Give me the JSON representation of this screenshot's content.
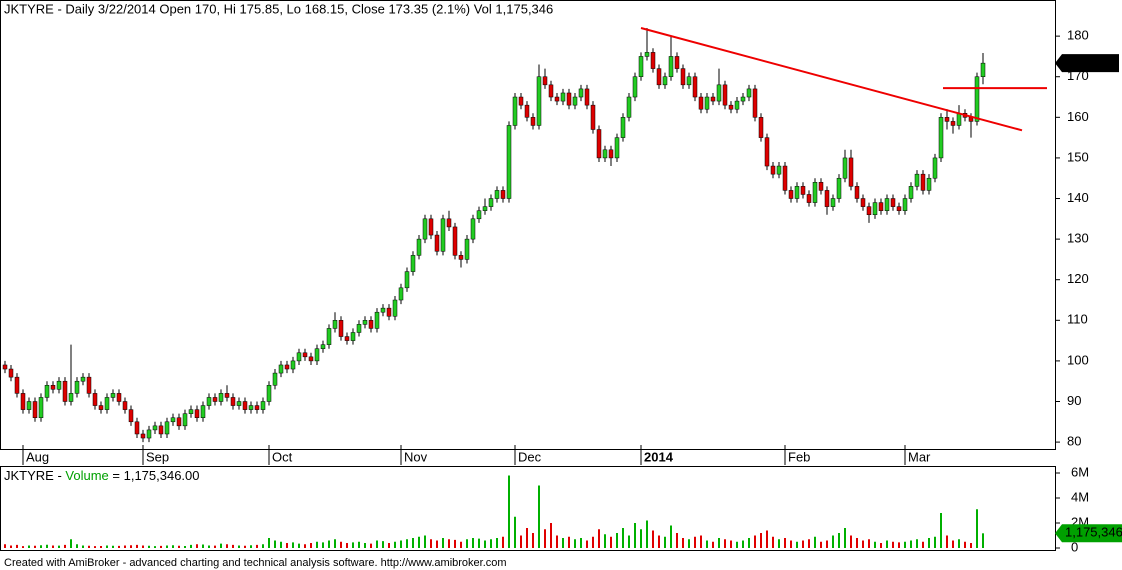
{
  "chart_data": {
    "type": "candlestick",
    "title": "JKTYRE - Daily 3/22/2014 Open 170, Hi 175.85, Lo 168.15, Close 173.35 (2.1%) Vol 1,175,346",
    "volume_title": {
      "symbol": "JKTYRE - ",
      "name": "Volume",
      "value": " = 1,175,346.00"
    },
    "footer": "Created with AmiBroker - advanced charting and technical analysis software. http://www.amibroker.com",
    "up_color": "#22cc22",
    "down_color": "#dd0000",
    "volume_up_color": "#00b000",
    "volume_down_color": "#e00000",
    "ylim": [
      78.3,
      188.9
    ],
    "yticks": [
      80,
      90,
      100,
      110,
      120,
      130,
      140,
      150,
      160,
      170,
      180
    ],
    "volume_ylim": [
      0,
      6480000
    ],
    "volume_ticks": [
      {
        "value": 0,
        "label": "0"
      },
      {
        "value": 2000000,
        "label": "2M"
      },
      {
        "value": 4000000,
        "label": "4M"
      },
      {
        "value": 6000000,
        "label": "6M"
      }
    ],
    "last_volume_label": "1,175,346",
    "trendlines": [
      {
        "color": "#ee0000",
        "start": 182,
        "end": 156.8
      },
      {
        "color": "#ee0000",
        "start": 167.2,
        "end": 167.2
      }
    ],
    "categories": [
      null,
      null,
      null,
      "Aug",
      null,
      null,
      null,
      null,
      null,
      null,
      null,
      null,
      null,
      null,
      null,
      null,
      null,
      null,
      null,
      null,
      null,
      null,
      null,
      "Sep",
      null,
      null,
      null,
      null,
      null,
      null,
      null,
      null,
      null,
      null,
      null,
      null,
      null,
      null,
      null,
      null,
      null,
      null,
      null,
      null,
      "Oct",
      null,
      null,
      null,
      null,
      null,
      null,
      null,
      null,
      null,
      null,
      null,
      null,
      null,
      null,
      null,
      null,
      null,
      null,
      null,
      null,
      null,
      "Nov",
      null,
      null,
      null,
      null,
      null,
      null,
      null,
      null,
      null,
      null,
      null,
      null,
      null,
      null,
      null,
      null,
      null,
      null,
      "Dec",
      null,
      null,
      null,
      null,
      null,
      null,
      null,
      null,
      null,
      null,
      null,
      null,
      null,
      null,
      null,
      null,
      null,
      null,
      null,
      null,
      "2014",
      null,
      null,
      null,
      null,
      null,
      null,
      null,
      null,
      null,
      null,
      null,
      null,
      null,
      null,
      null,
      null,
      null,
      null,
      null,
      null,
      null,
      null,
      null,
      "Feb",
      null,
      null,
      null,
      null,
      null,
      null,
      null,
      null,
      null,
      null,
      null,
      null,
      null,
      null,
      null,
      null,
      null,
      null,
      null,
      "Mar",
      null,
      null,
      null,
      null,
      null,
      null,
      null,
      null,
      null,
      null,
      null,
      null,
      null
    ],
    "candles": [
      [
        99,
        100,
        97,
        98
      ],
      [
        98,
        99,
        95,
        96
      ],
      [
        96,
        97,
        91,
        92
      ],
      [
        92,
        93,
        87,
        88
      ],
      [
        88,
        91,
        87,
        90
      ],
      [
        90,
        91,
        85,
        86
      ],
      [
        86,
        92,
        85,
        91
      ],
      [
        91,
        95,
        90,
        94
      ],
      [
        94,
        95,
        92,
        93
      ],
      [
        93,
        96,
        92,
        95
      ],
      [
        95,
        96,
        89,
        90
      ],
      [
        90,
        104,
        89,
        92
      ],
      [
        92,
        96,
        91,
        95
      ],
      [
        95,
        97,
        94,
        96
      ],
      [
        96,
        97,
        91,
        92
      ],
      [
        92,
        93,
        88,
        89
      ],
      [
        89,
        90,
        87,
        88
      ],
      [
        88,
        92,
        87,
        91
      ],
      [
        91,
        93,
        90,
        92
      ],
      [
        92,
        93,
        89,
        90
      ],
      [
        90,
        91,
        87,
        88
      ],
      [
        88,
        89,
        84,
        85
      ],
      [
        85,
        86,
        81,
        82
      ],
      [
        82,
        83,
        80,
        81
      ],
      [
        81,
        84,
        80,
        83
      ],
      [
        83,
        85,
        82,
        84
      ],
      [
        84,
        85,
        81,
        82
      ],
      [
        82,
        86,
        81,
        85
      ],
      [
        85,
        87,
        84,
        86
      ],
      [
        86,
        87,
        83,
        84
      ],
      [
        84,
        88,
        83,
        87
      ],
      [
        87,
        89,
        86,
        88
      ],
      [
        88,
        89,
        85,
        86
      ],
      [
        86,
        90,
        85,
        89
      ],
      [
        89,
        92,
        88,
        91
      ],
      [
        91,
        92,
        89,
        90
      ],
      [
        90,
        93,
        89,
        92
      ],
      [
        92,
        94,
        90,
        91
      ],
      [
        91,
        92,
        88,
        89
      ],
      [
        89,
        91,
        88,
        90
      ],
      [
        90,
        91,
        87,
        88
      ],
      [
        88,
        90,
        87,
        89
      ],
      [
        89,
        90,
        87,
        88
      ],
      [
        88,
        91,
        87,
        90
      ],
      [
        90,
        95,
        89,
        94
      ],
      [
        94,
        98,
        93,
        97
      ],
      [
        97,
        100,
        96,
        99
      ],
      [
        99,
        100,
        97,
        98
      ],
      [
        98,
        101,
        97,
        100
      ],
      [
        100,
        103,
        99,
        102
      ],
      [
        102,
        103,
        100,
        101
      ],
      [
        101,
        102,
        99,
        100
      ],
      [
        100,
        104,
        99,
        103
      ],
      [
        103,
        105,
        102,
        104
      ],
      [
        104,
        109,
        103,
        108
      ],
      [
        108,
        112,
        107,
        110
      ],
      [
        110,
        111,
        105,
        106
      ],
      [
        106,
        107,
        104,
        105
      ],
      [
        105,
        108,
        104,
        107
      ],
      [
        107,
        110,
        106,
        109
      ],
      [
        109,
        111,
        108,
        110
      ],
      [
        110,
        111,
        107,
        108
      ],
      [
        108,
        113,
        107,
        112
      ],
      [
        112,
        114,
        111,
        113
      ],
      [
        113,
        114,
        110,
        111
      ],
      [
        111,
        116,
        110,
        115
      ],
      [
        115,
        119,
        114,
        118
      ],
      [
        118,
        123,
        117,
        122
      ],
      [
        122,
        127,
        121,
        126
      ],
      [
        126,
        131,
        125,
        130
      ],
      [
        130,
        136,
        129,
        135
      ],
      [
        135,
        136,
        130,
        131
      ],
      [
        131,
        132,
        126,
        127
      ],
      [
        127,
        136,
        126,
        135
      ],
      [
        135,
        137,
        132,
        133
      ],
      [
        133,
        134,
        125,
        126
      ],
      [
        126,
        127,
        123,
        125
      ],
      [
        125,
        131,
        124,
        130
      ],
      [
        130,
        136,
        129,
        135
      ],
      [
        135,
        138,
        134,
        137
      ],
      [
        137,
        140,
        136,
        138
      ],
      [
        138,
        141,
        137,
        140
      ],
      [
        140,
        143,
        139,
        142
      ],
      [
        142,
        143,
        139,
        140
      ],
      [
        140,
        159,
        139,
        158
      ],
      [
        158,
        166,
        157,
        165
      ],
      [
        165,
        166,
        162,
        163
      ],
      [
        163,
        164,
        159,
        160
      ],
      [
        160,
        161,
        157,
        158
      ],
      [
        158,
        173,
        157,
        170
      ],
      [
        170,
        172,
        167,
        168
      ],
      [
        168,
        169,
        164,
        165
      ],
      [
        165,
        166,
        163,
        164
      ],
      [
        164,
        167,
        163,
        166
      ],
      [
        166,
        167,
        162,
        163
      ],
      [
        163,
        166,
        162,
        165
      ],
      [
        165,
        168,
        164,
        167
      ],
      [
        167,
        168,
        162,
        163
      ],
      [
        163,
        164,
        156,
        157
      ],
      [
        157,
        158,
        149,
        150
      ],
      [
        150,
        153,
        149,
        152
      ],
      [
        152,
        153,
        148,
        150
      ],
      [
        150,
        156,
        149,
        155
      ],
      [
        155,
        161,
        154,
        160
      ],
      [
        160,
        166,
        159,
        165
      ],
      [
        165,
        171,
        164,
        170
      ],
      [
        170,
        176,
        169,
        175
      ],
      [
        175,
        182,
        174,
        176
      ],
      [
        176,
        177,
        171,
        172
      ],
      [
        172,
        173,
        167,
        168
      ],
      [
        168,
        171,
        167,
        170
      ],
      [
        170,
        180,
        169,
        175
      ],
      [
        175,
        176,
        171,
        172
      ],
      [
        172,
        173,
        167,
        168
      ],
      [
        168,
        171,
        167,
        170
      ],
      [
        170,
        171,
        164,
        165
      ],
      [
        165,
        166,
        161,
        162
      ],
      [
        162,
        166,
        161,
        165
      ],
      [
        165,
        166,
        163,
        164
      ],
      [
        164,
        172,
        163,
        168
      ],
      [
        168,
        169,
        162,
        163
      ],
      [
        163,
        164,
        161,
        162
      ],
      [
        162,
        165,
        161,
        164
      ],
      [
        164,
        166,
        163,
        165
      ],
      [
        165,
        168,
        164,
        167
      ],
      [
        167,
        168,
        159,
        160
      ],
      [
        160,
        161,
        154,
        155
      ],
      [
        155,
        156,
        147,
        148
      ],
      [
        148,
        149,
        145,
        146
      ],
      [
        146,
        149,
        145,
        148
      ],
      [
        148,
        149,
        141,
        142
      ],
      [
        142,
        143,
        139,
        140
      ],
      [
        140,
        144,
        139,
        143
      ],
      [
        143,
        144,
        140,
        141
      ],
      [
        141,
        142,
        138,
        139
      ],
      [
        139,
        145,
        138,
        144
      ],
      [
        144,
        145,
        141,
        142
      ],
      [
        142,
        143,
        136,
        138
      ],
      [
        138,
        141,
        137,
        140
      ],
      [
        140,
        146,
        139,
        145
      ],
      [
        145,
        152,
        144,
        150
      ],
      [
        150,
        152,
        142,
        143
      ],
      [
        143,
        144,
        139,
        140
      ],
      [
        140,
        141,
        137,
        138
      ],
      [
        138,
        139,
        134,
        136
      ],
      [
        136,
        140,
        135,
        139
      ],
      [
        139,
        140,
        136,
        137
      ],
      [
        137,
        141,
        136,
        140
      ],
      [
        140,
        141,
        137,
        138
      ],
      [
        138,
        139,
        136,
        137
      ],
      [
        137,
        141,
        136,
        140
      ],
      [
        140,
        144,
        139,
        143
      ],
      [
        143,
        147,
        142,
        146
      ],
      [
        146,
        147,
        141,
        142
      ],
      [
        142,
        146,
        141,
        145
      ],
      [
        145,
        151,
        144,
        150
      ],
      [
        150,
        161,
        149,
        160
      ],
      [
        160,
        162,
        157,
        159
      ],
      [
        159,
        160,
        156,
        158
      ],
      [
        158,
        163,
        157,
        161
      ],
      [
        161,
        162,
        159,
        160
      ],
      [
        160,
        161,
        155,
        159
      ],
      [
        159,
        171,
        158,
        170
      ],
      [
        170,
        175.85,
        168.15,
        173.35
      ]
    ],
    "volume": [
      300000,
      200000,
      250000,
      150000,
      200000,
      180000,
      220000,
      260000,
      200000,
      190000,
      250000,
      700000,
      300000,
      200000,
      180000,
      150000,
      160000,
      200000,
      180000,
      170000,
      200000,
      220000,
      250000,
      200000,
      180000,
      150000,
      170000,
      200000,
      220000,
      180000,
      160000,
      250000,
      300000,
      280000,
      200000,
      190000,
      350000,
      300000,
      250000,
      200000,
      180000,
      220000,
      250000,
      300000,
      800000,
      600000,
      500000,
      400000,
      450000,
      350000,
      300000,
      400000,
      500000,
      450000,
      600000,
      700000,
      500000,
      400000,
      450000,
      500000,
      400000,
      350000,
      600000,
      550000,
      400000,
      500000,
      600000,
      700000,
      800000,
      900000,
      1000000,
      700000,
      600000,
      800000,
      700000,
      650000,
      500000,
      700000,
      800000,
      750000,
      600000,
      700000,
      800000,
      900000,
      5800000,
      2500000,
      1000000,
      1600000,
      1200000,
      5000000,
      1500000,
      2000000,
      1000000,
      800000,
      900000,
      700000,
      800000,
      600000,
      900000,
      1500000,
      1100000,
      900000,
      1200000,
      1600000,
      1000000,
      2000000,
      1500000,
      2200000,
      1400000,
      1000000,
      900000,
      1800000,
      1200000,
      800000,
      700000,
      900000,
      1000000,
      600000,
      500000,
      800000,
      700000,
      600000,
      500000,
      600000,
      800000,
      1000000,
      1200000,
      1400000,
      900000,
      700000,
      800000,
      600000,
      500000,
      600000,
      700000,
      900000,
      500000,
      600000,
      1000000,
      1200000,
      1600000,
      1000000,
      800000,
      600000,
      700000,
      500000,
      400000,
      600000,
      500000,
      450000,
      500000,
      600000,
      700000,
      500000,
      800000,
      900000,
      2800000,
      1000000,
      600000,
      700000,
      500000,
      400000,
      3100000,
      1175346
    ]
  }
}
